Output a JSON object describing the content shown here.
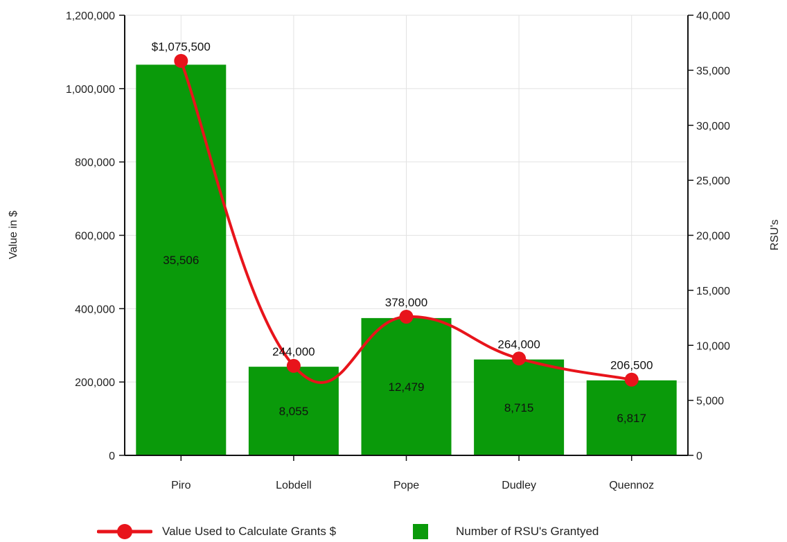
{
  "chart_data": {
    "type": "bar",
    "categories": [
      "Piro",
      "Lobdell",
      "Pope",
      "Dudley",
      "Quennoz"
    ],
    "series": [
      {
        "name": "Number of RSU's Grantyed",
        "type": "bar",
        "axis": "right",
        "values": [
          35506,
          8055,
          12479,
          8715,
          6817
        ],
        "labels": [
          "35,506",
          "8,055",
          "12,479",
          "8,715",
          "6,817"
        ],
        "color": "#0a9a0a"
      },
      {
        "name": "Value Used to Calculate Grants $",
        "type": "line",
        "axis": "left",
        "values": [
          1075500,
          244000,
          378000,
          264000,
          206500
        ],
        "labels": [
          "$1,075,500",
          "244,000",
          "378,000",
          "264,000",
          "206,500"
        ],
        "color": "#e8141b"
      }
    ],
    "y_left": {
      "label": "Value in $",
      "ylim": [
        0,
        1200000
      ],
      "ticks": [
        "0",
        "200,000",
        "400,000",
        "600,000",
        "800,000",
        "1,000,000",
        "1,200,000"
      ]
    },
    "y_right": {
      "label": "RSU's",
      "ylim": [
        0,
        40000
      ],
      "ticks": [
        "0",
        "5,000",
        "10,000",
        "15,000",
        "20,000",
        "25,000",
        "30,000",
        "35,000",
        "40,000"
      ]
    },
    "grid": true,
    "legend_position": "bottom"
  }
}
